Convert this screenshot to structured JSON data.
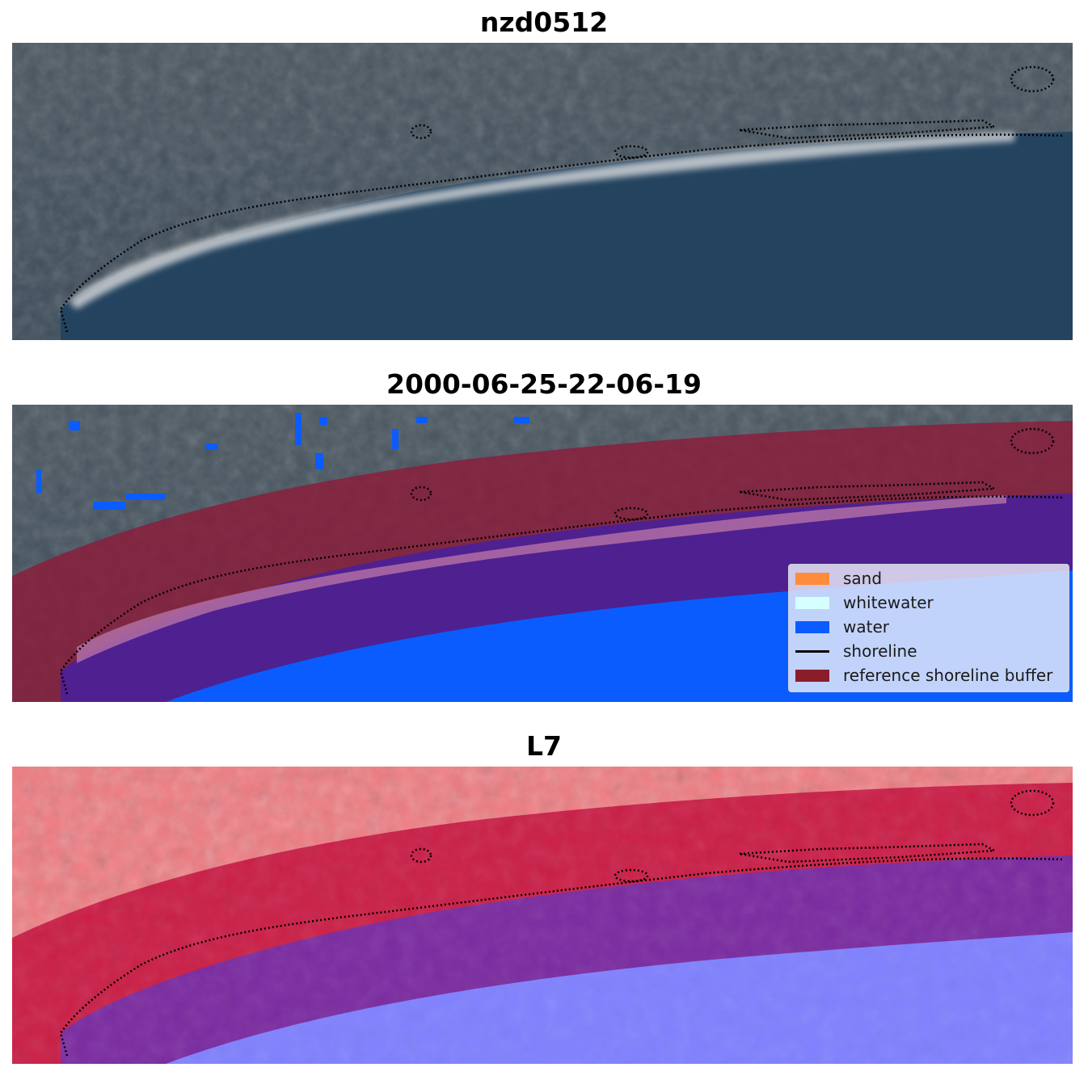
{
  "panels": [
    {
      "title": "nzd0512",
      "kind": "rgb"
    },
    {
      "title": "2000-06-25-22-06-19",
      "kind": "classified"
    },
    {
      "title": "L7",
      "kind": "index"
    }
  ],
  "legend": {
    "items": [
      {
        "label": "sand",
        "color": "#ff8c3a",
        "type": "patch"
      },
      {
        "label": "whitewater",
        "color": "#d6ffff",
        "type": "patch"
      },
      {
        "label": "water",
        "color": "#0a5cff",
        "type": "patch"
      },
      {
        "label": "shoreline",
        "color": "#000000",
        "type": "line"
      },
      {
        "label": "reference shoreline buffer",
        "color": "#8b1c2a",
        "type": "patch"
      }
    ]
  },
  "colors": {
    "land": "#3d4a55",
    "sea": "#22425f",
    "beach": "#e4e4e4",
    "classified_water": "#0a5cff",
    "buffer": "#8b1c3a",
    "buffer_water_overlap": "#4f2090",
    "index_land": "#f07a80",
    "index_buffer": "#c40d3b",
    "index_water": "#7f80ff"
  }
}
